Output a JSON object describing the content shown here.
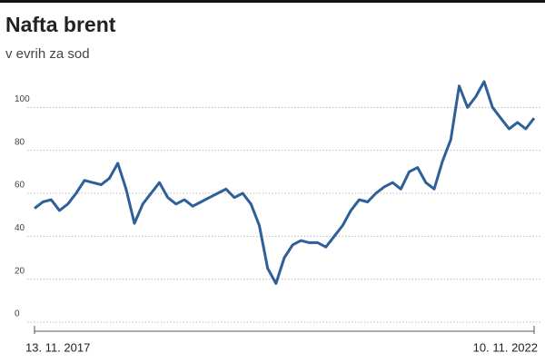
{
  "chart_data": {
    "type": "line",
    "title": "Nafta brent",
    "subtitle": "v evrih za sod",
    "categories": [
      "13. 11. 2017",
      null,
      null,
      null,
      null,
      null,
      null,
      null,
      null,
      null,
      null,
      null,
      null,
      null,
      null,
      null,
      null,
      null,
      null,
      null,
      null,
      null,
      null,
      null,
      null,
      null,
      null,
      null,
      null,
      null,
      null,
      null,
      null,
      null,
      null,
      null,
      null,
      null,
      null,
      null,
      null,
      null,
      null,
      null,
      null,
      null,
      null,
      null,
      null,
      null,
      null,
      null,
      null,
      null,
      null,
      null,
      null,
      null,
      null,
      null,
      "10. 11. 2022"
    ],
    "values": [
      53,
      56,
      57,
      52,
      55,
      60,
      66,
      65,
      64,
      67,
      74,
      62,
      46,
      55,
      60,
      65,
      58,
      55,
      57,
      54,
      56,
      58,
      60,
      62,
      58,
      60,
      55,
      45,
      25,
      18,
      30,
      36,
      38,
      37,
      37,
      35,
      40,
      45,
      52,
      57,
      56,
      60,
      63,
      65,
      62,
      70,
      72,
      65,
      62,
      75,
      85,
      110,
      100,
      105,
      112,
      100,
      95,
      90,
      93,
      90,
      95
    ],
    "color": "#2f5f98",
    "ylim": [
      0,
      120
    ],
    "yticks": [
      0,
      20,
      40,
      60,
      80,
      100
    ],
    "grid": true
  }
}
